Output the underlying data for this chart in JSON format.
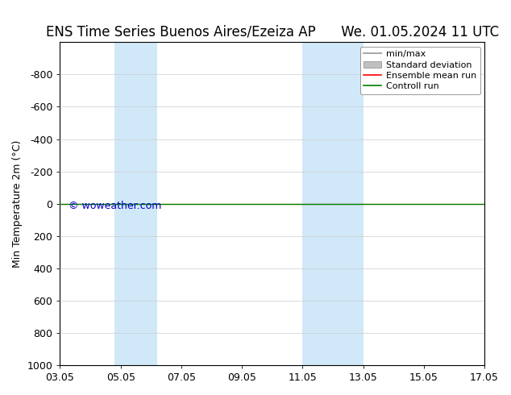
{
  "title_left": "ENS Time Series Buenos Aires/Ezeiza AP",
  "title_right": "We. 01.05.2024 11 UTC",
  "ylabel": "Min Temperature 2m (°C)",
  "ylim_bottom": 1000,
  "ylim_top": -1000,
  "yticks": [
    -800,
    -600,
    -400,
    -200,
    0,
    200,
    400,
    600,
    800,
    1000
  ],
  "xtick_vals": [
    0,
    2,
    4,
    6,
    8,
    10,
    12,
    14
  ],
  "xtick_labels": [
    "03.05",
    "05.05",
    "07.05",
    "09.05",
    "11.05",
    "13.05",
    "15.05",
    "17.05"
  ],
  "xlim": [
    0,
    14
  ],
  "shaded_bands": [
    {
      "x_start": 1.8,
      "x_end": 3.2
    },
    {
      "x_start": 8.0,
      "x_end": 10.0
    }
  ],
  "shaded_color": "#d0e8f8",
  "control_run_y": 0,
  "ensemble_mean_y": 0,
  "background_color": "#ffffff",
  "plot_bg_color": "#ffffff",
  "watermark": "© woweather.com",
  "watermark_color": "#0000cc",
  "legend_labels": [
    "min/max",
    "Standard deviation",
    "Ensemble mean run",
    "Controll run"
  ],
  "legend_colors": [
    "#aaaaaa",
    "#c0c0c0",
    "#ff0000",
    "#008000"
  ],
  "title_fontsize": 12,
  "axis_fontsize": 9,
  "legend_fontsize": 8,
  "watermark_fontsize": 9
}
